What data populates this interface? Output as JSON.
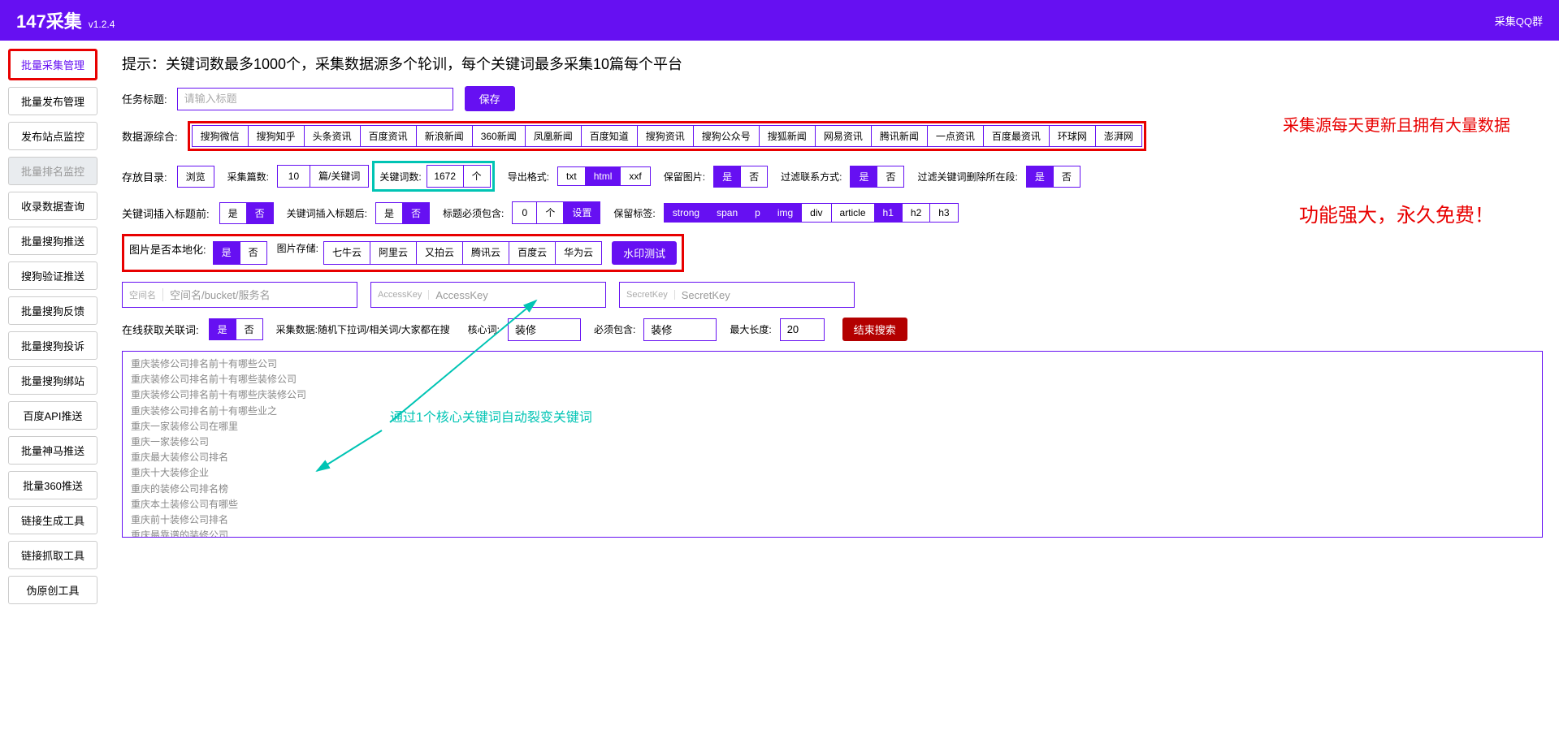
{
  "header": {
    "title": "147采集",
    "version": "v1.2.4",
    "qq": "采集QQ群"
  },
  "sidebar": [
    {
      "label": "批量采集管理",
      "state": "active"
    },
    {
      "label": "批量发布管理",
      "state": ""
    },
    {
      "label": "发布站点监控",
      "state": ""
    },
    {
      "label": "批量排名监控",
      "state": "disabled"
    },
    {
      "label": "收录数据查询",
      "state": ""
    },
    {
      "label": "批量搜狗推送",
      "state": ""
    },
    {
      "label": "搜狗验证推送",
      "state": ""
    },
    {
      "label": "批量搜狗反馈",
      "state": ""
    },
    {
      "label": "批量搜狗投诉",
      "state": ""
    },
    {
      "label": "批量搜狗绑站",
      "state": ""
    },
    {
      "label": "百度API推送",
      "state": ""
    },
    {
      "label": "批量神马推送",
      "state": ""
    },
    {
      "label": "批量360推送",
      "state": ""
    },
    {
      "label": "链接生成工具",
      "state": ""
    },
    {
      "label": "链接抓取工具",
      "state": ""
    },
    {
      "label": "伪原创工具",
      "state": ""
    }
  ],
  "hint": "提示：关键词数最多1000个，采集数据源多个轮训，每个关键词最多采集10篇每个平台",
  "taskTitle": {
    "label": "任务标题:",
    "placeholder": "请输入标题",
    "save": "保存"
  },
  "sourcesLabel": "数据源综合:",
  "sources": [
    "搜狗微信",
    "搜狗知乎",
    "头条资讯",
    "百度资讯",
    "新浪新闻",
    "360新闻",
    "凤凰新闻",
    "百度知道",
    "搜狗资讯",
    "搜狗公众号",
    "搜狐新闻",
    "网易资讯",
    "腾讯新闻",
    "一点资讯",
    "百度最资讯",
    "环球网",
    "澎湃网"
  ],
  "annot1": "采集源每天更新且拥有大量数据",
  "annot2": "功能强大，永久免费！",
  "annot3": "通过1个核心关键词自动裂变关键词",
  "row3": {
    "saveDir": "存放目录:",
    "browse": "浏览",
    "articles": "采集篇数:",
    "articlesVal": "10",
    "articlesUnit": "篇/关键词",
    "kwCount": "关键词数:",
    "kwVal": "1672",
    "kwUnit": "个",
    "exportFmt": "导出格式:",
    "fmts": [
      "txt",
      "html",
      "xxf"
    ],
    "fmtOn": 1,
    "keepImg": "保留图片:",
    "yes": "是",
    "no": "否",
    "filterContact": "过滤联系方式:",
    "filterKwDel": "过滤关键词删除所在段:"
  },
  "row4": {
    "insertBefore": "关键词插入标题前:",
    "insertAfter": "关键词插入标题后:",
    "mustContain": "标题必须包含:",
    "mustVal": "0",
    "mustUnit": "个",
    "setting": "设置",
    "keepTag": "保留标签:",
    "tags": [
      "strong",
      "span",
      "p",
      "img",
      "div",
      "article",
      "h1",
      "h2",
      "h3"
    ],
    "tagsOn": [
      0,
      1,
      2,
      3,
      6
    ]
  },
  "row5": {
    "localImg": "图片是否本地化:",
    "imgStore": "图片存储:",
    "stores": [
      "七牛云",
      "阿里云",
      "又拍云",
      "腾讯云",
      "百度云",
      "华为云"
    ],
    "watermark": "水印测试"
  },
  "row6": {
    "space": {
      "prefix": "空间名",
      "placeholder": "空间名/bucket/服务名"
    },
    "ak": {
      "prefix": "AccessKey",
      "placeholder": "AccessKey"
    },
    "sk": {
      "prefix": "SecretKey",
      "placeholder": "SecretKey"
    }
  },
  "row7": {
    "onlineKw": "在线获取关联词:",
    "dataDesc": "采集数据:随机下拉词/相关词/大家都在搜",
    "coreKw": "核心词:",
    "coreVal": "装修",
    "mustInc": "必须包含:",
    "mustVal": "装修",
    "maxLen": "最大长度:",
    "maxVal": "20",
    "endSearch": "结束搜索"
  },
  "keywords": "重庆装修公司排名前十有哪些公司\n重庆装修公司排名前十有哪些装修公司\n重庆装修公司排名前十有哪些庆装修公司\n重庆装修公司排名前十有哪些业之\n重庆一家装修公司在哪里\n重庆一家装修公司\n重庆最大装修公司排名\n重庆十大装修企业\n重庆的装修公司排名榜\n重庆本土装修公司有哪些\n重庆前十装修公司排名\n重庆最靠谱的装修公司\n重庆会所装修公司\n重庆空港的装修公司有哪些\n重庆装修公司哪家优惠力度大"
}
